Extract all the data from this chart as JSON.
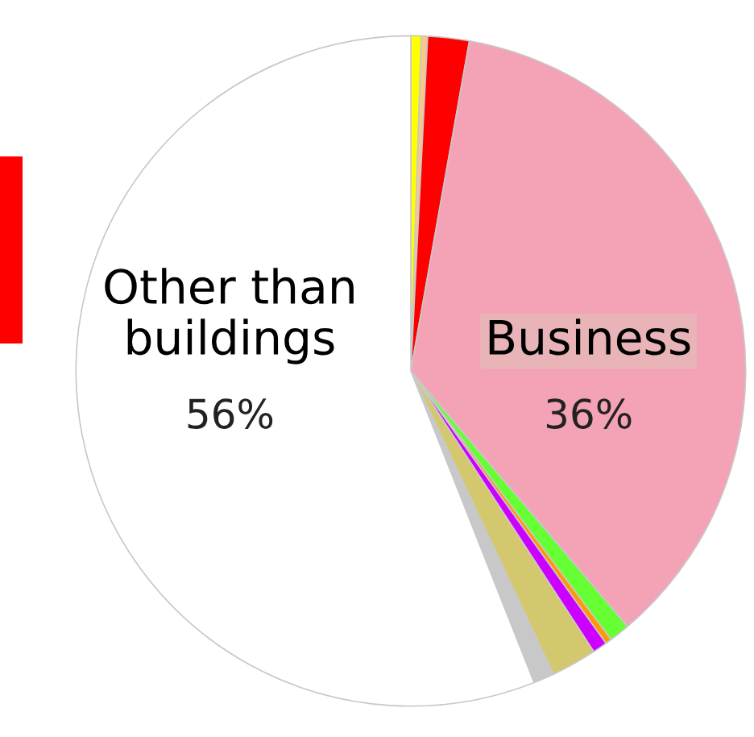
{
  "chart_data": {
    "type": "pie",
    "categories": [
      null,
      null,
      null,
      "Business",
      null,
      null,
      null,
      null,
      null,
      "Other than\nbuildings"
    ],
    "values": [
      0.5,
      0.3,
      2,
      36,
      1,
      0.3,
      0.7,
      2.2,
      1,
      56
    ],
    "colors": [
      "#ffff00",
      "#f8c88a",
      "#ff0000",
      "#f4a2b6",
      "#66ff33",
      "#ff9900",
      "#cc00ff",
      "#d4c86e",
      "#c8c8c8",
      "#ffffff"
    ],
    "value_labels": [
      null,
      null,
      null,
      "36%",
      null,
      null,
      null,
      null,
      null,
      "56%"
    ]
  }
}
